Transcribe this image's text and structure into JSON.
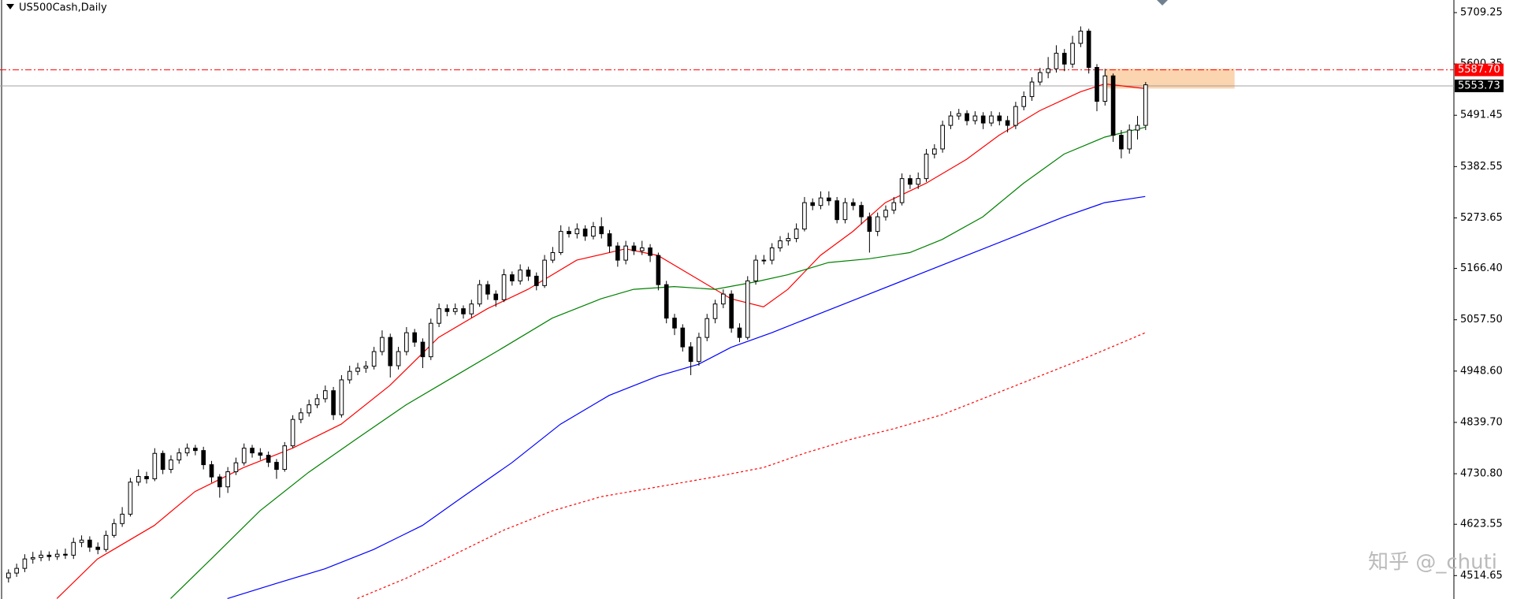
{
  "chart_data": {
    "type": "candlestick",
    "title": "US500Cash,Daily",
    "watermark": "知乎 @_chuti",
    "xlim": [
      -1,
      178
    ],
    "ylim": [
      4465,
      5736
    ],
    "yticks": [
      5709.25,
      5600.35,
      5491.45,
      5382.55,
      5273.65,
      {
        "value": 5166.4,
        "label": "5166.40"
      },
      {
        "value": 5057.5,
        "label": "5057.50"
      },
      {
        "value": 4948.6,
        "label": "4948.60"
      },
      {
        "value": 4839.7,
        "label": "4839.70"
      },
      {
        "value": 4730.8,
        "label": "4730.80"
      },
      4623.55,
      4514.65
    ],
    "up_color": "#ffffff",
    "down_color": "#000000",
    "candles": {
      "open": [
        4510,
        4520,
        4530,
        4550,
        4553,
        4558,
        4555,
        4560,
        4558,
        4585,
        4590,
        4575,
        4570,
        4600,
        4625,
        4645,
        4713,
        4725,
        4720,
        4774,
        4740,
        4760,
        4775,
        4785,
        4780,
        4750,
        4724,
        4703,
        4735,
        4754,
        4785,
        4775,
        4770,
        4755,
        4740,
        4790,
        4846,
        4860,
        4877,
        4890,
        4907,
        4856,
        4930,
        4948,
        4955,
        4959,
        4990,
        5020,
        4960,
        4990,
        5030,
        5010,
        4979,
        5050,
        5081,
        5075,
        5081,
        5070,
        5091,
        5132,
        5112,
        5100,
        5153,
        5140,
        5163,
        5150,
        5130,
        5184,
        5200,
        5245,
        5240,
        5250,
        5235,
        5255,
        5240,
        5214,
        5184,
        5214,
        5204,
        5210,
        5194,
        5132,
        5061,
        5040,
        5000,
        4969,
        5020,
        5060,
        5091,
        5112,
        5040,
        5020,
        5140,
        5184,
        5184,
        5210,
        5225,
        5230,
        5250,
        5306,
        5300,
        5316,
        5310,
        5270,
        5306,
        5300,
        5276,
        5245,
        5276,
        5290,
        5306,
        5357,
        5345,
        5357,
        5409,
        5420,
        5470,
        5490,
        5495,
        5480,
        5490,
        5475,
        5490,
        5480,
        5470,
        5510,
        5531,
        5562,
        5582,
        5590,
        5623,
        5600,
        5644,
        5670,
        5593,
        5521,
        5575,
        5449,
        5420,
        5460,
        5470
      ],
      "high": [
        4528,
        4540,
        4560,
        4565,
        4568,
        4566,
        4570,
        4572,
        4595,
        4600,
        4598,
        4585,
        4610,
        4635,
        4660,
        4722,
        4740,
        4735,
        4785,
        4780,
        4770,
        4785,
        4795,
        4792,
        4788,
        4758,
        4730,
        4745,
        4765,
        4795,
        4792,
        4785,
        4778,
        4762,
        4798,
        4855,
        4870,
        4888,
        4900,
        4918,
        4915,
        4940,
        4960,
        4966,
        4970,
        5000,
        5035,
        5028,
        5000,
        5042,
        5038,
        5018,
        5060,
        5092,
        5090,
        5092,
        5088,
        5100,
        5142,
        5140,
        5120,
        5165,
        5160,
        5175,
        5170,
        5158,
        5195,
        5212,
        5258,
        5255,
        5262,
        5258,
        5265,
        5275,
        5248,
        5222,
        5225,
        5222,
        5225,
        5218,
        5200,
        5140,
        5070,
        5048,
        5010,
        5030,
        5070,
        5100,
        5122,
        5120,
        5050,
        5150,
        5195,
        5195,
        5220,
        5235,
        5242,
        5262,
        5318,
        5315,
        5330,
        5330,
        5318,
        5316,
        5315,
        5308,
        5285,
        5285,
        5300,
        5318,
        5368,
        5365,
        5370,
        5420,
        5430,
        5480,
        5500,
        5505,
        5502,
        5500,
        5498,
        5500,
        5498,
        5490,
        5520,
        5542,
        5572,
        5592,
        5615,
        5640,
        5632,
        5660,
        5680,
        5675,
        5600,
        5590,
        5580,
        5460,
        5472,
        5490,
        5562
      ],
      "low": [
        4500,
        4512,
        4522,
        4540,
        4545,
        4546,
        4548,
        4550,
        4550,
        4575,
        4565,
        4560,
        4565,
        4595,
        4618,
        4640,
        4705,
        4710,
        4715,
        4730,
        4732,
        4752,
        4768,
        4770,
        4740,
        4712,
        4680,
        4690,
        4728,
        4748,
        4765,
        4760,
        4745,
        4720,
        4735,
        4785,
        4838,
        4852,
        4870,
        4882,
        4845,
        4850,
        4922,
        4940,
        4945,
        4952,
        4982,
        4935,
        4952,
        4982,
        5000,
        4955,
        4972,
        5042,
        5065,
        5068,
        5060,
        5062,
        5085,
        5100,
        5085,
        5095,
        5130,
        5132,
        5140,
        5120,
        5125,
        5178,
        5195,
        5232,
        5230,
        5225,
        5228,
        5230,
        5200,
        5170,
        5175,
        5195,
        5195,
        5180,
        5120,
        5050,
        5025,
        4990,
        4940,
        4960,
        5012,
        5050,
        5082,
        5030,
        5010,
        5015,
        5132,
        5175,
        5175,
        5202,
        5215,
        5222,
        5245,
        5290,
        5292,
        5300,
        5262,
        5262,
        5290,
        5260,
        5200,
        5235,
        5268,
        5282,
        5300,
        5335,
        5335,
        5350,
        5400,
        5412,
        5462,
        5482,
        5470,
        5472,
        5462,
        5468,
        5470,
        5455,
        5462,
        5502,
        5522,
        5555,
        5570,
        5582,
        5585,
        5592,
        5636,
        5580,
        5500,
        5512,
        5435,
        5400,
        5410,
        5440,
        5460
      ],
      "close": [
        4520,
        4530,
        4550,
        4553,
        4558,
        4555,
        4560,
        4558,
        4585,
        4590,
        4575,
        4570,
        4600,
        4625,
        4645,
        4713,
        4725,
        4720,
        4774,
        4740,
        4760,
        4775,
        4785,
        4780,
        4750,
        4724,
        4703,
        4735,
        4754,
        4785,
        4775,
        4770,
        4755,
        4740,
        4790,
        4846,
        4860,
        4877,
        4890,
        4907,
        4856,
        4930,
        4948,
        4955,
        4959,
        4990,
        5020,
        4960,
        4990,
        5030,
        5010,
        4979,
        5050,
        5081,
        5075,
        5081,
        5070,
        5091,
        5132,
        5112,
        5100,
        5153,
        5140,
        5163,
        5150,
        5130,
        5184,
        5200,
        5245,
        5240,
        5250,
        5235,
        5255,
        5240,
        5214,
        5184,
        5214,
        5204,
        5210,
        5194,
        5132,
        5061,
        5040,
        5000,
        4969,
        5020,
        5060,
        5091,
        5112,
        5040,
        5020,
        5140,
        5184,
        5184,
        5210,
        5225,
        5230,
        5250,
        5306,
        5300,
        5316,
        5310,
        5270,
        5306,
        5300,
        5276,
        5245,
        5276,
        5290,
        5306,
        5357,
        5345,
        5357,
        5409,
        5420,
        5470,
        5490,
        5495,
        5480,
        5490,
        5475,
        5490,
        5480,
        5470,
        5510,
        5531,
        5562,
        5582,
        5590,
        5623,
        5600,
        5644,
        5670,
        5593,
        5521,
        5575,
        5449,
        5420,
        5460,
        5470,
        5556
      ]
    },
    "mas": [
      {
        "color": "#ff0000",
        "style": "solid",
        "x": [
          6,
          11,
          18,
          23,
          29,
          35,
          41,
          47,
          53,
          59,
          64,
          70,
          76,
          80,
          85,
          89,
          93,
          96,
          100,
          104,
          108,
          113,
          118,
          122,
          127,
          132,
          135,
          140
        ],
        "values": [
          4466,
          4550,
          4621,
          4693,
          4744,
          4785,
          4836,
          4918,
          5020,
          5081,
          5122,
          5184,
          5208,
          5194,
          5143,
          5102,
          5085,
          5122,
          5194,
          5245,
          5306,
          5347,
          5398,
          5449,
          5501,
          5541,
          5558,
          5548
        ]
      },
      {
        "color": "#008000",
        "style": "solid",
        "x": [
          20,
          25,
          31,
          37,
          43,
          49,
          55,
          61,
          67,
          73,
          77,
          82,
          87,
          92,
          96,
          101,
          106,
          111,
          115,
          120,
          125,
          130,
          135,
          140
        ],
        "values": [
          4466,
          4550,
          4652,
          4734,
          4806,
          4877,
          4938,
          4999,
          5061,
          5102,
          5122,
          5128,
          5122,
          5138,
          5153,
          5179,
          5187,
          5200,
          5228,
          5276,
          5347,
          5409,
          5445,
          5466
        ]
      },
      {
        "color": "#0000ff",
        "style": "solid",
        "x": [
          27,
          33,
          39,
          45,
          51,
          56,
          62,
          68,
          74,
          80,
          85,
          89,
          94,
          100,
          106,
          112,
          118,
          124,
          130,
          135,
          140
        ],
        "values": [
          4466,
          4498,
          4529,
          4570,
          4621,
          4682,
          4754,
          4836,
          4897,
          4938,
          4963,
          4999,
          5030,
          5071,
          5112,
          5153,
          5194,
          5235,
          5276,
          5306,
          5319
        ]
      },
      {
        "color": "#ff0000",
        "style": "dotted",
        "x": [
          43,
          49,
          55,
          61,
          67,
          73,
          80,
          87,
          93,
          98,
          104,
          109,
          115,
          121,
          127,
          133,
          140
        ],
        "values": [
          4466,
          4509,
          4560,
          4611,
          4652,
          4682,
          4703,
          4724,
          4744,
          4774,
          4805,
          4826,
          4856,
          4897,
          4938,
          4979,
          5030
        ]
      }
    ],
    "zone": {
      "color": "#fbd5b0",
      "x": [
        135,
        151
      ],
      "y": [
        5548,
        5590
      ]
    },
    "hlines": [
      {
        "value": {
          "value": 5587.7,
          "label": "5587.70"
        },
        "color": "#ff0000",
        "style": "dashdot",
        "label_bg": "#ff0000"
      },
      {
        "value": 5553.73,
        "color": "#a0a0a0",
        "style": "solid",
        "label_bg": "#000000"
      }
    ]
  }
}
